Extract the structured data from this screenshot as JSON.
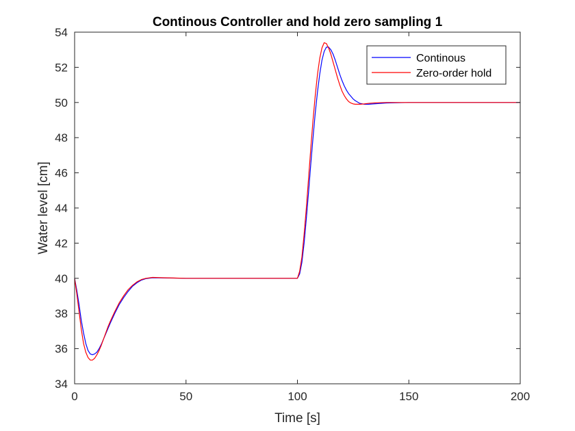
{
  "chart_data": {
    "type": "line",
    "title": "Continous Controller and hold zero sampling 1",
    "xlabel": "Time [s]",
    "ylabel": "Water level [cm]",
    "xlim": [
      0,
      200
    ],
    "ylim": [
      34,
      54
    ],
    "xticks": [
      "0",
      "50",
      "100",
      "150",
      "200"
    ],
    "yticks": [
      "34",
      "36",
      "38",
      "40",
      "42",
      "44",
      "46",
      "48",
      "50",
      "52",
      "54"
    ],
    "grid": false,
    "legend_position": "top-right",
    "series": [
      {
        "name": "Continous",
        "color": "#0000ff",
        "x": [
          0,
          1,
          2,
          3,
          4,
          5,
          6,
          7,
          8,
          9,
          10,
          11,
          12,
          13,
          14,
          15,
          16,
          18,
          20,
          22,
          24,
          26,
          28,
          30,
          32,
          35,
          40,
          50,
          60,
          70,
          80,
          90,
          100,
          101,
          102,
          103,
          104,
          105,
          106,
          107,
          108,
          109,
          110,
          111,
          112,
          113,
          114,
          115,
          116,
          117,
          118,
          119,
          120,
          121,
          122,
          123,
          124,
          125,
          126,
          128,
          130,
          132,
          135,
          140,
          150,
          160,
          180,
          200
        ],
        "y": [
          40.0,
          39.3,
          38.5,
          37.6,
          36.9,
          36.3,
          35.9,
          35.7,
          35.65,
          35.7,
          35.8,
          36.0,
          36.25,
          36.55,
          36.85,
          37.15,
          37.45,
          38.0,
          38.5,
          38.9,
          39.25,
          39.55,
          39.75,
          39.9,
          39.98,
          40.03,
          40.02,
          40.0,
          40.0,
          40.0,
          40.0,
          40.0,
          40.0,
          40.25,
          40.9,
          42.0,
          43.4,
          44.9,
          46.5,
          48.0,
          49.4,
          50.6,
          51.6,
          52.4,
          52.9,
          53.15,
          53.15,
          53.0,
          52.75,
          52.4,
          52.0,
          51.6,
          51.25,
          50.95,
          50.7,
          50.5,
          50.35,
          50.2,
          50.1,
          49.95,
          49.9,
          49.9,
          49.93,
          49.97,
          50.0,
          50.0,
          50.0,
          50.0
        ]
      },
      {
        "name": "Zero-order hold",
        "color": "#ff0000",
        "x": [
          0,
          1,
          2,
          3,
          4,
          5,
          6,
          7,
          8,
          9,
          10,
          11,
          12,
          13,
          14,
          15,
          16,
          18,
          20,
          22,
          24,
          26,
          28,
          30,
          32,
          35,
          40,
          50,
          60,
          70,
          80,
          90,
          100,
          101,
          102,
          103,
          104,
          105,
          106,
          107,
          108,
          109,
          110,
          111,
          112,
          113,
          114,
          115,
          116,
          117,
          118,
          119,
          120,
          121,
          122,
          123,
          124,
          125,
          126,
          128,
          130,
          132,
          135,
          140,
          150,
          160,
          180,
          200
        ],
        "y": [
          40.0,
          39.1,
          38.1,
          37.1,
          36.3,
          35.8,
          35.5,
          35.35,
          35.35,
          35.45,
          35.65,
          35.9,
          36.2,
          36.55,
          36.9,
          37.25,
          37.55,
          38.1,
          38.6,
          39.0,
          39.35,
          39.6,
          39.8,
          39.93,
          40.0,
          40.05,
          40.03,
          40.0,
          40.0,
          40.0,
          40.0,
          40.0,
          40.0,
          40.4,
          41.2,
          42.5,
          44.0,
          45.7,
          47.4,
          49.0,
          50.4,
          51.6,
          52.5,
          53.1,
          53.4,
          53.35,
          53.1,
          52.75,
          52.3,
          51.85,
          51.4,
          51.0,
          50.65,
          50.4,
          50.2,
          50.05,
          49.97,
          49.92,
          49.9,
          49.9,
          49.92,
          49.95,
          49.98,
          50.0,
          50.0,
          50.0,
          50.0,
          50.0
        ]
      }
    ]
  }
}
